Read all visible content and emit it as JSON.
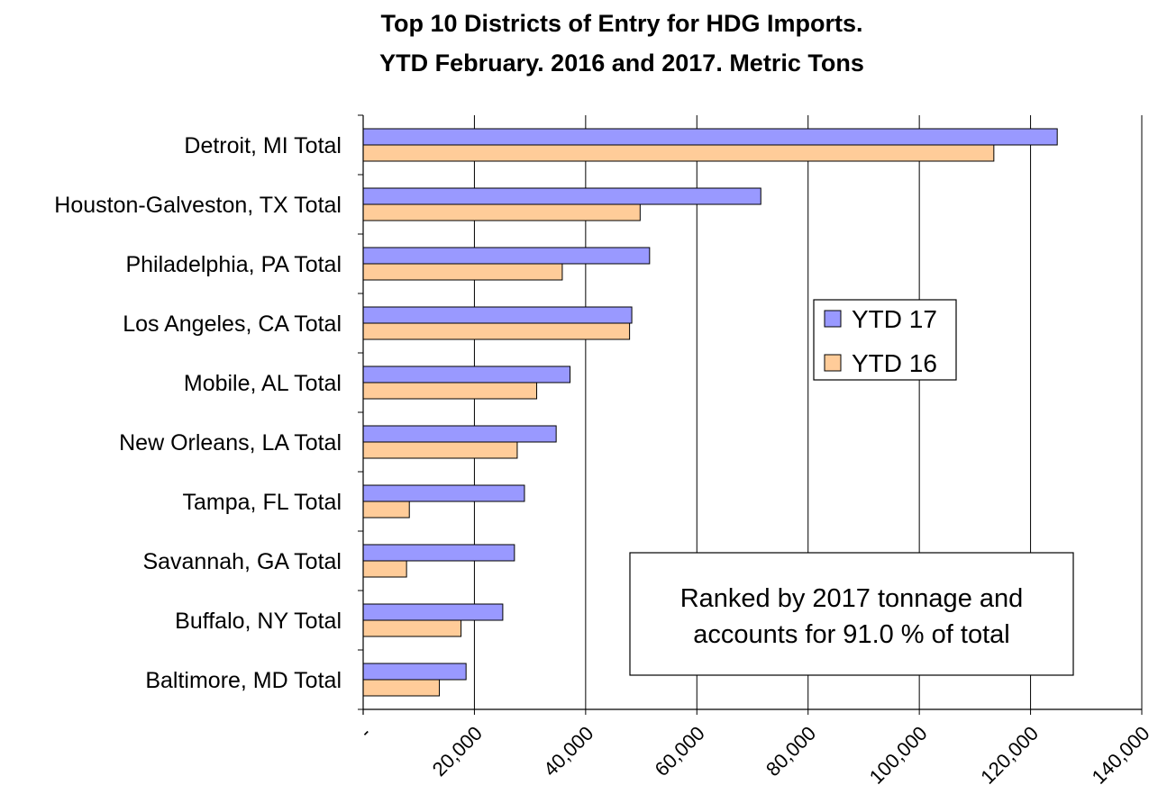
{
  "chart_data": {
    "type": "bar",
    "orientation": "horizontal",
    "title_lines": [
      "Top 10 Districts of Entry for HDG Imports.",
      "YTD February. 2016 and 2017. Metric Tons"
    ],
    "categories": [
      "Detroit, MI Total",
      "Houston-Galveston, TX Total",
      "Philadelphia, PA Total",
      "Los Angeles, CA Total",
      "Mobile, AL Total",
      "New Orleans, LA Total",
      "Tampa, FL Total",
      "Savannah, GA Total",
      "Buffalo, NY Total",
      "Baltimore, MD Total"
    ],
    "series": [
      {
        "name": "YTD 17",
        "color": "#9999ff",
        "values": [
          124800,
          71500,
          51500,
          48300,
          37200,
          34700,
          29000,
          27200,
          25100,
          18500
        ]
      },
      {
        "name": "YTD 16",
        "color": "#ffcc99",
        "values": [
          113400,
          49800,
          35800,
          47900,
          31200,
          27700,
          8300,
          7800,
          17600,
          13700
        ]
      }
    ],
    "xlim": [
      0,
      140000
    ],
    "x_ticks": [
      0,
      20000,
      40000,
      60000,
      80000,
      100000,
      120000,
      140000
    ],
    "x_tick_labels": [
      "-",
      "20,000",
      "40,000",
      "60,000",
      "80,000",
      "100,000",
      "120,000",
      "140,000"
    ],
    "grid": "vertical",
    "legend_position": "right",
    "annotation_lines": [
      "Ranked by 2017 tonnage and",
      "accounts for 91.0 % of total"
    ]
  }
}
